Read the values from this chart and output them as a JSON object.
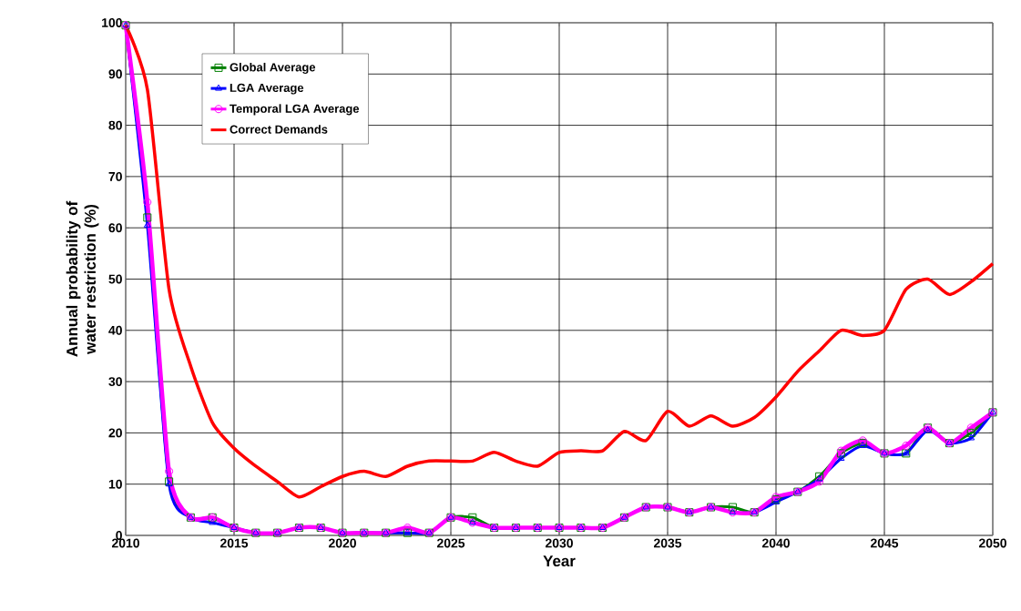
{
  "chart_data": {
    "type": "line",
    "xlabel": "Year",
    "ylabel": "Annual probability of water restriction (%)",
    "x": [
      2010,
      2011,
      2012,
      2013,
      2014,
      2015,
      2016,
      2017,
      2018,
      2019,
      2020,
      2021,
      2022,
      2023,
      2024,
      2025,
      2026,
      2027,
      2028,
      2029,
      2030,
      2031,
      2032,
      2033,
      2034,
      2035,
      2036,
      2037,
      2038,
      2039,
      2040,
      2041,
      2042,
      2043,
      2044,
      2045,
      2046,
      2047,
      2048,
      2049,
      2050
    ],
    "series": [
      {
        "name": "Global Average",
        "color": "#008000",
        "marker": "square",
        "values": [
          99.5,
          62,
          10.5,
          3.5,
          3.5,
          1.5,
          0.5,
          0.5,
          1.5,
          1.5,
          0.5,
          0.5,
          0.5,
          0.5,
          0.5,
          3.5,
          3.5,
          1.5,
          1.5,
          1.5,
          1.5,
          1.5,
          1.5,
          3.5,
          5.5,
          5.5,
          4.5,
          5.5,
          5.5,
          4.5,
          7,
          8.5,
          11.5,
          16,
          18,
          16,
          16,
          21,
          18,
          20,
          24
        ]
      },
      {
        "name": "LGA Average",
        "color": "#0000ff",
        "marker": "triangle",
        "values": [
          99.5,
          60.5,
          10,
          3.5,
          2.5,
          1.5,
          0.5,
          0.5,
          1.5,
          1.5,
          0.5,
          0.5,
          0.5,
          0.5,
          0.5,
          3.5,
          2.5,
          1.5,
          1.5,
          1.5,
          1.5,
          1.5,
          1.5,
          3.5,
          5.5,
          5.5,
          4.5,
          5.5,
          4.5,
          4.5,
          6.5,
          8.5,
          11,
          15,
          17.5,
          16,
          16,
          20.5,
          18,
          19,
          24
        ]
      },
      {
        "name": "Temporal LGA Average",
        "color": "#ff00ff",
        "marker": "circle",
        "values": [
          99.5,
          65,
          12.5,
          3.5,
          3.5,
          1.5,
          0.5,
          0.5,
          1.5,
          1.5,
          0.5,
          0.5,
          0.5,
          1.5,
          0.5,
          3.5,
          2.5,
          1.5,
          1.5,
          1.5,
          1.5,
          1.5,
          1.5,
          3.5,
          5.5,
          5.5,
          4.5,
          5.5,
          4.5,
          4.5,
          7.5,
          8.5,
          10.5,
          16.5,
          18.5,
          16,
          17.5,
          21,
          18,
          21,
          24
        ]
      },
      {
        "name": "Correct Demands",
        "color": "#ff0000",
        "marker": "none",
        "values": [
          99.5,
          87,
          48,
          33,
          22,
          17,
          13.5,
          10.5,
          7.5,
          9.5,
          11.5,
          12.5,
          11.5,
          13.5,
          14.5,
          14.5,
          14.5,
          16.2,
          14.5,
          13.5,
          16.2,
          16.5,
          16.5,
          20.3,
          18.5,
          24.2,
          21.3,
          23.3,
          21.3,
          23,
          27,
          32,
          36,
          40,
          39,
          40,
          48,
          50,
          47,
          49.5,
          53
        ]
      }
    ],
    "xlim": [
      2010,
      2050
    ],
    "xticks": [
      2010,
      2015,
      2020,
      2025,
      2030,
      2035,
      2040,
      2045,
      2050
    ],
    "ylim": [
      0,
      100
    ],
    "yticks": [
      0,
      10,
      20,
      30,
      40,
      50,
      60,
      70,
      80,
      90,
      100
    ],
    "grid": true,
    "legend": "top left"
  }
}
